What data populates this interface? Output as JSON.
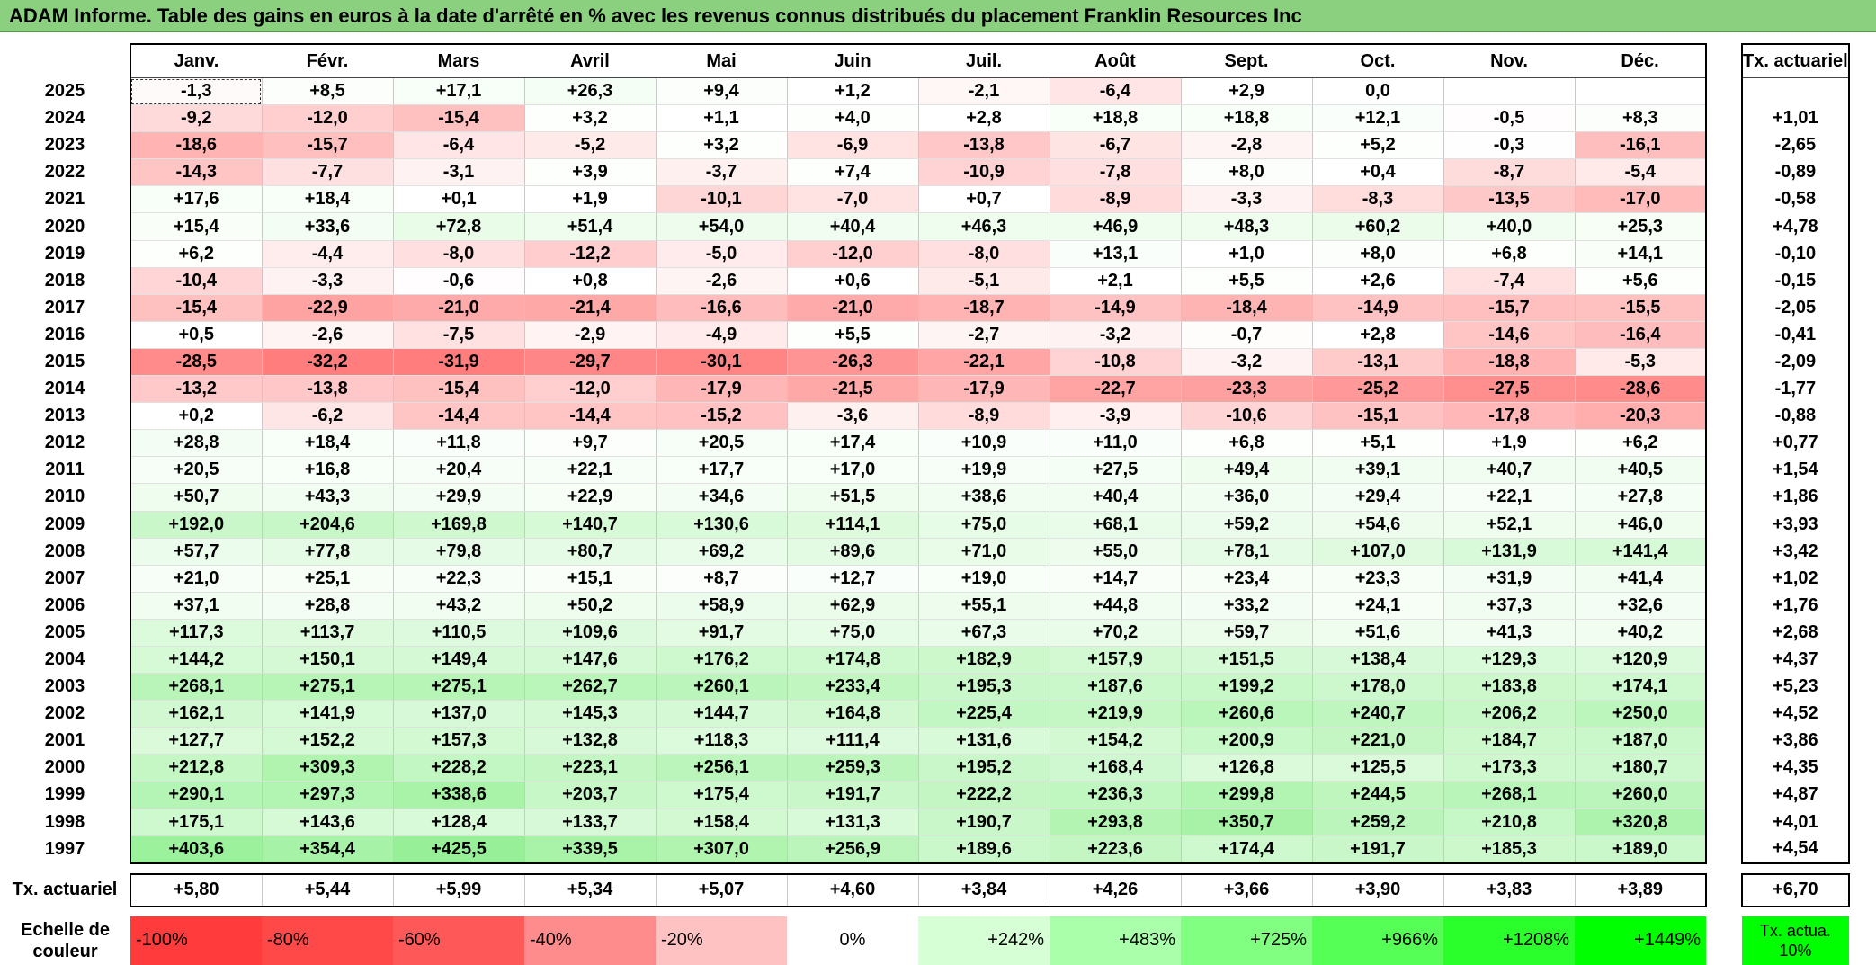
{
  "title": "ADAM Informe. Table des gains en euros à la date d'arrêté en % avec les revenus connus distribués du placement Franklin Resources Inc",
  "chart_data": {
    "type": "table",
    "months": [
      "Janv.",
      "Févr.",
      "Mars",
      "Avril",
      "Mai",
      "Juin",
      "Juil.",
      "Août",
      "Sept.",
      "Oct.",
      "Nov.",
      "Déc."
    ],
    "tx_header": "Tx. actuariel",
    "rows": [
      {
        "year": "2025",
        "values": [
          "-1,3",
          "+8,5",
          "+17,1",
          "+26,3",
          "+9,4",
          "+1,2",
          "-2,1",
          "-6,4",
          "+2,9",
          "0,0",
          "",
          ""
        ],
        "tx": ""
      },
      {
        "year": "2024",
        "values": [
          "-9,2",
          "-12,0",
          "-15,4",
          "+3,2",
          "+1,1",
          "+4,0",
          "+2,8",
          "+18,8",
          "+18,8",
          "+12,1",
          "-0,5",
          "+8,3"
        ],
        "tx": "+1,01"
      },
      {
        "year": "2023",
        "values": [
          "-18,6",
          "-15,7",
          "-6,4",
          "-5,2",
          "+3,2",
          "-6,9",
          "-13,8",
          "-6,7",
          "-2,8",
          "+5,2",
          "-0,3",
          "-16,1"
        ],
        "tx": "-2,65"
      },
      {
        "year": "2022",
        "values": [
          "-14,3",
          "-7,7",
          "-3,1",
          "+3,9",
          "-3,7",
          "+7,4",
          "-10,9",
          "-7,8",
          "+8,0",
          "+0,4",
          "-8,7",
          "-5,4"
        ],
        "tx": "-0,89"
      },
      {
        "year": "2021",
        "values": [
          "+17,6",
          "+18,4",
          "+0,1",
          "+1,9",
          "-10,1",
          "-7,0",
          "+0,7",
          "-8,9",
          "-3,3",
          "-8,3",
          "-13,5",
          "-17,0"
        ],
        "tx": "-0,58"
      },
      {
        "year": "2020",
        "values": [
          "+15,4",
          "+33,6",
          "+72,8",
          "+51,4",
          "+54,0",
          "+40,4",
          "+46,3",
          "+46,9",
          "+48,3",
          "+60,2",
          "+40,0",
          "+25,3"
        ],
        "tx": "+4,78"
      },
      {
        "year": "2019",
        "values": [
          "+6,2",
          "-4,4",
          "-8,0",
          "-12,2",
          "-5,0",
          "-12,0",
          "-8,0",
          "+13,1",
          "+1,0",
          "+8,0",
          "+6,8",
          "+14,1"
        ],
        "tx": "-0,10"
      },
      {
        "year": "2018",
        "values": [
          "-10,4",
          "-3,3",
          "-0,6",
          "+0,8",
          "-2,6",
          "+0,6",
          "-5,1",
          "+2,1",
          "+5,5",
          "+2,6",
          "-7,4",
          "+5,6"
        ],
        "tx": "-0,15"
      },
      {
        "year": "2017",
        "values": [
          "-15,4",
          "-22,9",
          "-21,0",
          "-21,4",
          "-16,6",
          "-21,0",
          "-18,7",
          "-14,9",
          "-18,4",
          "-14,9",
          "-15,7",
          "-15,5"
        ],
        "tx": "-2,05"
      },
      {
        "year": "2016",
        "values": [
          "+0,5",
          "-2,6",
          "-7,5",
          "-2,9",
          "-4,9",
          "+5,5",
          "-2,7",
          "-3,2",
          "-0,7",
          "+2,8",
          "-14,6",
          "-16,4"
        ],
        "tx": "-0,41"
      },
      {
        "year": "2015",
        "values": [
          "-28,5",
          "-32,2",
          "-31,9",
          "-29,7",
          "-30,1",
          "-26,3",
          "-22,1",
          "-10,8",
          "-3,2",
          "-13,1",
          "-18,8",
          "-5,3"
        ],
        "tx": "-2,09"
      },
      {
        "year": "2014",
        "values": [
          "-13,2",
          "-13,8",
          "-15,4",
          "-12,0",
          "-17,9",
          "-21,5",
          "-17,9",
          "-22,7",
          "-23,3",
          "-25,2",
          "-27,5",
          "-28,6"
        ],
        "tx": "-1,77"
      },
      {
        "year": "2013",
        "values": [
          "+0,2",
          "-6,2",
          "-14,4",
          "-14,4",
          "-15,2",
          "-3,6",
          "-8,9",
          "-3,9",
          "-10,6",
          "-15,1",
          "-17,8",
          "-20,3"
        ],
        "tx": "-0,88"
      },
      {
        "year": "2012",
        "values": [
          "+28,8",
          "+18,4",
          "+11,8",
          "+9,7",
          "+20,5",
          "+17,4",
          "+10,9",
          "+11,0",
          "+6,8",
          "+5,1",
          "+1,9",
          "+6,2"
        ],
        "tx": "+0,77"
      },
      {
        "year": "2011",
        "values": [
          "+20,5",
          "+16,8",
          "+20,4",
          "+22,1",
          "+17,7",
          "+17,0",
          "+19,9",
          "+27,5",
          "+49,4",
          "+39,1",
          "+40,7",
          "+40,5"
        ],
        "tx": "+1,54"
      },
      {
        "year": "2010",
        "values": [
          "+50,7",
          "+43,3",
          "+29,9",
          "+22,9",
          "+34,6",
          "+51,5",
          "+38,6",
          "+40,4",
          "+36,0",
          "+29,4",
          "+22,1",
          "+27,8"
        ],
        "tx": "+1,86"
      },
      {
        "year": "2009",
        "values": [
          "+192,0",
          "+204,6",
          "+169,8",
          "+140,7",
          "+130,6",
          "+114,1",
          "+75,0",
          "+68,1",
          "+59,2",
          "+54,6",
          "+52,1",
          "+46,0"
        ],
        "tx": "+3,93"
      },
      {
        "year": "2008",
        "values": [
          "+57,7",
          "+77,8",
          "+79,8",
          "+80,7",
          "+69,2",
          "+89,6",
          "+71,0",
          "+55,0",
          "+78,1",
          "+107,0",
          "+131,9",
          "+141,4"
        ],
        "tx": "+3,42"
      },
      {
        "year": "2007",
        "values": [
          "+21,0",
          "+25,1",
          "+22,3",
          "+15,1",
          "+8,7",
          "+12,7",
          "+19,0",
          "+14,7",
          "+23,4",
          "+23,3",
          "+31,9",
          "+41,4"
        ],
        "tx": "+1,02"
      },
      {
        "year": "2006",
        "values": [
          "+37,1",
          "+28,8",
          "+43,2",
          "+50,2",
          "+58,9",
          "+62,9",
          "+55,1",
          "+44,8",
          "+33,2",
          "+24,1",
          "+37,3",
          "+32,6"
        ],
        "tx": "+1,76"
      },
      {
        "year": "2005",
        "values": [
          "+117,3",
          "+113,7",
          "+110,5",
          "+109,6",
          "+91,7",
          "+75,0",
          "+67,3",
          "+70,2",
          "+59,7",
          "+51,6",
          "+41,3",
          "+40,2"
        ],
        "tx": "+2,68"
      },
      {
        "year": "2004",
        "values": [
          "+144,2",
          "+150,1",
          "+149,4",
          "+147,6",
          "+176,2",
          "+174,8",
          "+182,9",
          "+157,9",
          "+151,5",
          "+138,4",
          "+129,3",
          "+120,9"
        ],
        "tx": "+4,37"
      },
      {
        "year": "2003",
        "values": [
          "+268,1",
          "+275,1",
          "+275,1",
          "+262,7",
          "+260,1",
          "+233,4",
          "+195,3",
          "+187,6",
          "+199,2",
          "+178,0",
          "+183,8",
          "+174,1"
        ],
        "tx": "+5,23"
      },
      {
        "year": "2002",
        "values": [
          "+162,1",
          "+141,9",
          "+137,0",
          "+145,3",
          "+144,7",
          "+164,8",
          "+225,4",
          "+219,9",
          "+260,6",
          "+240,7",
          "+206,2",
          "+250,0"
        ],
        "tx": "+4,52"
      },
      {
        "year": "2001",
        "values": [
          "+127,7",
          "+152,2",
          "+157,3",
          "+132,8",
          "+118,3",
          "+111,4",
          "+131,6",
          "+154,2",
          "+200,9",
          "+221,0",
          "+184,7",
          "+187,0"
        ],
        "tx": "+3,86"
      },
      {
        "year": "2000",
        "values": [
          "+212,8",
          "+309,3",
          "+228,2",
          "+223,1",
          "+256,1",
          "+259,3",
          "+195,2",
          "+168,4",
          "+126,8",
          "+125,5",
          "+173,3",
          "+180,7"
        ],
        "tx": "+4,35"
      },
      {
        "year": "1999",
        "values": [
          "+290,1",
          "+297,3",
          "+338,6",
          "+203,7",
          "+175,4",
          "+191,7",
          "+222,2",
          "+236,3",
          "+299,8",
          "+244,5",
          "+268,1",
          "+260,0"
        ],
        "tx": "+4,87"
      },
      {
        "year": "1998",
        "values": [
          "+175,1",
          "+143,6",
          "+128,4",
          "+133,7",
          "+158,4",
          "+131,3",
          "+190,7",
          "+293,8",
          "+350,7",
          "+259,2",
          "+210,8",
          "+320,8"
        ],
        "tx": "+4,01"
      },
      {
        "year": "1997",
        "values": [
          "+403,6",
          "+354,4",
          "+425,5",
          "+339,5",
          "+307,0",
          "+256,9",
          "+189,6",
          "+223,6",
          "+174,4",
          "+191,7",
          "+185,3",
          "+189,0"
        ],
        "tx": "+4,54"
      }
    ],
    "summary": {
      "label": "Tx. actuariel",
      "values": [
        "+5,80",
        "+5,44",
        "+5,99",
        "+5,34",
        "+5,07",
        "+4,60",
        "+3,84",
        "+4,26",
        "+3,66",
        "+3,90",
        "+3,83",
        "+3,89"
      ],
      "tx": "+6,70"
    },
    "scale": {
      "label": "Echelle de couleur",
      "items": [
        {
          "label": "-100%",
          "color": "#ff3b3b"
        },
        {
          "label": "-80%",
          "color": "#ff4848"
        },
        {
          "label": "-60%",
          "color": "#ff5858"
        },
        {
          "label": "-40%",
          "color": "#ff8c8c"
        },
        {
          "label": "-20%",
          "color": "#ffc2c2"
        },
        {
          "label": "0%",
          "color": "#ffffff"
        },
        {
          "label": "+242%",
          "color": "#d6ffd6"
        },
        {
          "label": "+483%",
          "color": "#aaffaa"
        },
        {
          "label": "+725%",
          "color": "#80ff80"
        },
        {
          "label": "+966%",
          "color": "#55ff55"
        },
        {
          "label": "+1208%",
          "color": "#2bff2b"
        },
        {
          "label": "+1449%",
          "color": "#00ff00"
        }
      ],
      "tx_label": "Tx. actua. 10%",
      "tx_color": "#00ff00"
    }
  }
}
